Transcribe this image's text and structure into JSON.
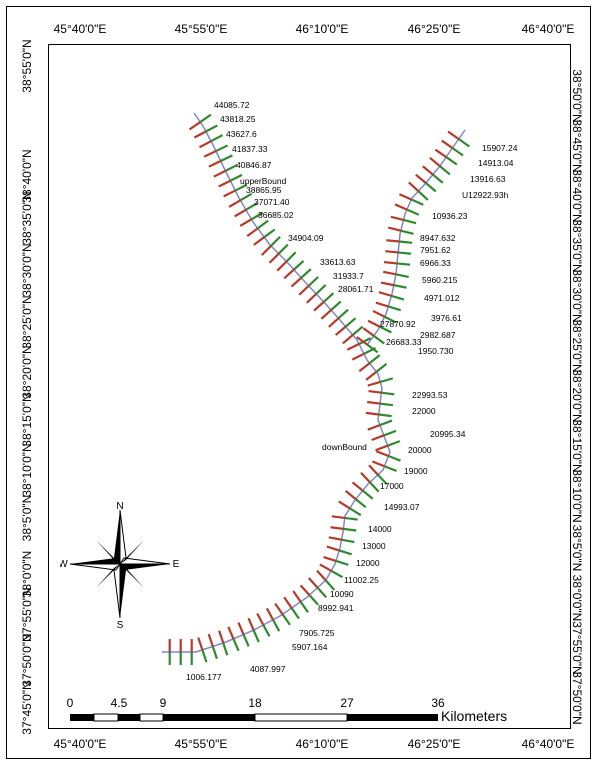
{
  "map": {
    "top_ticks": [
      "45°40'0\"E",
      "45°55'0\"E",
      "46°10'0\"E",
      "46°25'0\"E",
      "46°40'0\"E"
    ],
    "bottom_ticks": [
      "45°40'0\"E",
      "45°55'0\"E",
      "46°10'0\"E",
      "46°25'0\"E",
      "46°40'0\"E"
    ],
    "left_ticks": [
      "38°55'0\"N",
      "38°40'0\"N",
      "38°35'0\"N",
      "38°30'0\"N",
      "38°25'0\"N",
      "38°20'0\"N",
      "38°15'0\"N",
      "38°10'0\"N",
      "38°5'0\"N",
      "38°0'0\"N",
      "37°55'0\"N",
      "37°50'0\"N",
      "37°45'0\"N"
    ],
    "right_ticks": [
      "38°50'0\"N",
      "38°45'0\"N",
      "38°40'0\"N",
      "38°35'0\"N",
      "38°30'0\"N",
      "38°25'0\"N",
      "38°20'0\"N",
      "38°15'0\"N",
      "38°10'0\"N",
      "38°5'0\"N",
      "38°0'0\"N",
      "37°55'0\"N",
      "37°50'0\"N"
    ],
    "north_arrow": {
      "n": "N",
      "s": "S",
      "e": "E",
      "w": "W"
    },
    "scale": {
      "labels": [
        "0",
        "4.5",
        "9",
        "18",
        "27",
        "36"
      ],
      "unit": "Kilometers"
    },
    "station_labels": [
      "44085.72",
      "43818.25",
      "43627.6",
      "41837.33",
      "40846.87",
      "upperBound",
      "38865.95",
      "37071.40",
      "36685.02",
      "34904.09",
      "33613.63",
      "31933.7",
      "28061.71",
      "27870.92",
      "26683.33",
      "15907.24",
      "14913.04",
      "13916.63",
      "U12922.93h",
      "10936.23",
      "8947.632",
      "7951.62",
      "6966.33",
      "5960.215",
      "4971.012",
      "3976.61",
      "2982.687",
      "1950.730",
      "22993.53",
      "22000",
      "20995.34",
      "20000",
      "downBound",
      "19000",
      "17000",
      "14993.07",
      "14000",
      "13000",
      "12000",
      "11002.25",
      "10090",
      "8992.941",
      "7905.725",
      "5907.164",
      "4087.997",
      "1006.177"
    ]
  }
}
